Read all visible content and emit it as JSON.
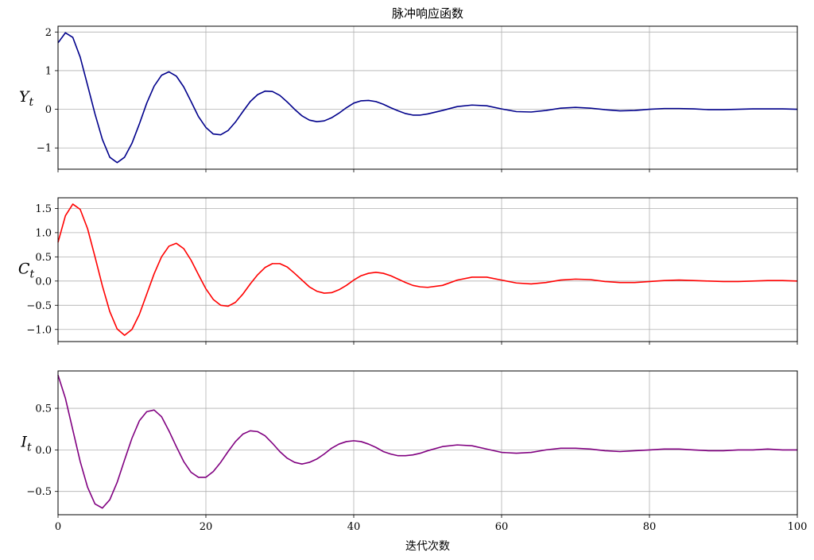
{
  "chart_data": {
    "type": "line",
    "title": "脉冲响应函数",
    "xlabel": "迭代次数",
    "xlim": [
      0,
      100
    ],
    "xticks": [
      0,
      20,
      40,
      60,
      80,
      100
    ],
    "grid": true,
    "shared_x": true,
    "subplots": [
      {
        "id": "yt",
        "ylabel_main": "Y",
        "ylabel_sub": "t",
        "color": "#00008b",
        "ylim": [
          -1.55,
          2.15
        ],
        "yticks": [
          2,
          1,
          0,
          -1
        ],
        "ytick_labels": [
          "2",
          "1",
          "0",
          "−1"
        ],
        "x": [
          0,
          1,
          2,
          3,
          4,
          5,
          6,
          7,
          8,
          9,
          10,
          11,
          12,
          13,
          14,
          15,
          16,
          17,
          18,
          19,
          20,
          21,
          22,
          23,
          24,
          25,
          26,
          27,
          28,
          29,
          30,
          31,
          32,
          33,
          34,
          35,
          36,
          37,
          38,
          39,
          40,
          41,
          42,
          43,
          44,
          45,
          46,
          47,
          48,
          49,
          50,
          52,
          54,
          56,
          58,
          60,
          62,
          64,
          66,
          68,
          70,
          72,
          74,
          76,
          78,
          80,
          82,
          84,
          86,
          88,
          90,
          92,
          94,
          96,
          98,
          100
        ],
        "values": [
          1.72,
          1.98,
          1.86,
          1.35,
          0.62,
          -0.12,
          -0.78,
          -1.24,
          -1.38,
          -1.24,
          -0.88,
          -0.38,
          0.16,
          0.6,
          0.88,
          0.97,
          0.86,
          0.58,
          0.2,
          -0.19,
          -0.47,
          -0.64,
          -0.66,
          -0.55,
          -0.33,
          -0.06,
          0.2,
          0.38,
          0.47,
          0.46,
          0.36,
          0.19,
          0.0,
          -0.17,
          -0.28,
          -0.32,
          -0.3,
          -0.22,
          -0.1,
          0.04,
          0.16,
          0.22,
          0.23,
          0.2,
          0.13,
          0.04,
          -0.04,
          -0.11,
          -0.15,
          -0.15,
          -0.12,
          -0.03,
          0.07,
          0.11,
          0.09,
          0.01,
          -0.06,
          -0.07,
          -0.03,
          0.03,
          0.05,
          0.03,
          -0.01,
          -0.04,
          -0.03,
          0.0,
          0.02,
          0.02,
          0.01,
          -0.01,
          -0.01,
          0.0,
          0.01,
          0.01,
          0.01,
          0.0
        ]
      },
      {
        "id": "ct",
        "ylabel_main": "C",
        "ylabel_sub": "t",
        "color": "#ff0000",
        "ylim": [
          -1.25,
          1.72
        ],
        "yticks": [
          1.5,
          1.0,
          0.5,
          0.0,
          -0.5,
          -1.0
        ],
        "ytick_labels": [
          "1.5",
          "1.0",
          "0.5",
          "0.0",
          "−0.5",
          "−1.0"
        ],
        "x": [
          0,
          1,
          2,
          3,
          4,
          5,
          6,
          7,
          8,
          9,
          10,
          11,
          12,
          13,
          14,
          15,
          16,
          17,
          18,
          19,
          20,
          21,
          22,
          23,
          24,
          25,
          26,
          27,
          28,
          29,
          30,
          31,
          32,
          33,
          34,
          35,
          36,
          37,
          38,
          39,
          40,
          41,
          42,
          43,
          44,
          45,
          46,
          47,
          48,
          49,
          50,
          52,
          54,
          56,
          58,
          60,
          62,
          64,
          66,
          68,
          70,
          72,
          74,
          76,
          78,
          80,
          82,
          84,
          86,
          88,
          90,
          92,
          94,
          96,
          98,
          100
        ],
        "values": [
          0.8,
          1.35,
          1.59,
          1.48,
          1.08,
          0.5,
          -0.1,
          -0.63,
          -0.99,
          -1.12,
          -1.0,
          -0.69,
          -0.27,
          0.15,
          0.5,
          0.72,
          0.78,
          0.67,
          0.43,
          0.13,
          -0.16,
          -0.38,
          -0.5,
          -0.52,
          -0.44,
          -0.27,
          -0.06,
          0.13,
          0.28,
          0.36,
          0.36,
          0.29,
          0.16,
          0.02,
          -0.12,
          -0.21,
          -0.25,
          -0.24,
          -0.18,
          -0.09,
          0.02,
          0.11,
          0.16,
          0.18,
          0.16,
          0.11,
          0.04,
          -0.03,
          -0.09,
          -0.12,
          -0.13,
          -0.09,
          0.02,
          0.08,
          0.08,
          0.02,
          -0.04,
          -0.06,
          -0.03,
          0.02,
          0.04,
          0.03,
          -0.01,
          -0.03,
          -0.03,
          -0.01,
          0.01,
          0.02,
          0.01,
          0.0,
          -0.01,
          -0.01,
          0.0,
          0.01,
          0.01,
          0.0
        ]
      },
      {
        "id": "it",
        "ylabel_main": "I",
        "ylabel_sub": "t",
        "color": "#800080",
        "ylim": [
          -0.78,
          0.95
        ],
        "yticks": [
          0.5,
          0.0,
          -0.5
        ],
        "ytick_labels": [
          "0.5",
          "0.0",
          "−0.5"
        ],
        "x": [
          0,
          1,
          2,
          3,
          4,
          5,
          6,
          7,
          8,
          9,
          10,
          11,
          12,
          13,
          14,
          15,
          16,
          17,
          18,
          19,
          20,
          21,
          22,
          23,
          24,
          25,
          26,
          27,
          28,
          29,
          30,
          31,
          32,
          33,
          34,
          35,
          36,
          37,
          38,
          39,
          40,
          41,
          42,
          43,
          44,
          45,
          46,
          47,
          48,
          49,
          50,
          52,
          54,
          56,
          58,
          60,
          62,
          64,
          66,
          68,
          70,
          72,
          74,
          76,
          78,
          80,
          82,
          84,
          86,
          88,
          90,
          92,
          94,
          96,
          98,
          100
        ],
        "values": [
          0.9,
          0.62,
          0.24,
          -0.14,
          -0.45,
          -0.65,
          -0.7,
          -0.6,
          -0.39,
          -0.12,
          0.14,
          0.35,
          0.46,
          0.48,
          0.4,
          0.23,
          0.04,
          -0.14,
          -0.27,
          -0.33,
          -0.33,
          -0.26,
          -0.15,
          -0.02,
          0.1,
          0.19,
          0.23,
          0.22,
          0.17,
          0.08,
          -0.02,
          -0.1,
          -0.15,
          -0.17,
          -0.15,
          -0.11,
          -0.05,
          0.02,
          0.07,
          0.1,
          0.11,
          0.1,
          0.07,
          0.03,
          -0.02,
          -0.05,
          -0.07,
          -0.07,
          -0.06,
          -0.04,
          -0.01,
          0.04,
          0.06,
          0.05,
          0.01,
          -0.03,
          -0.04,
          -0.03,
          0.0,
          0.02,
          0.02,
          0.01,
          -0.01,
          -0.02,
          -0.01,
          0.0,
          0.01,
          0.01,
          0.0,
          -0.01,
          -0.01,
          0.0,
          0.0,
          0.01,
          0.0,
          0.0
        ]
      }
    ]
  }
}
